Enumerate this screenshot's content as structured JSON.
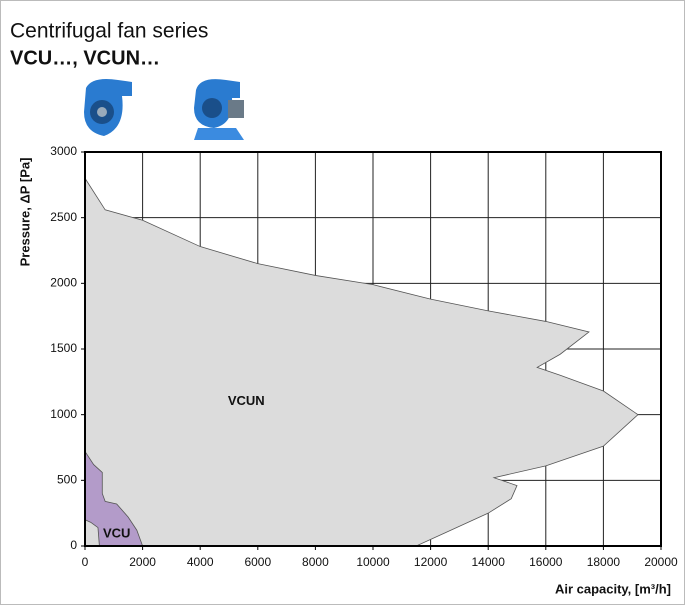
{
  "chart_data": {
    "type": "area",
    "title": "Centrifugal fan series",
    "subtitle": "VCU…, VCUN…",
    "x_label": "Air capacity, [m³/h]",
    "y_label": "Pressure, ΔP [Pa]",
    "xlim": [
      0,
      20000
    ],
    "ylim": [
      0,
      3000
    ],
    "xticks": [
      0,
      2000,
      4000,
      6000,
      8000,
      10000,
      12000,
      14000,
      16000,
      18000,
      20000
    ],
    "yticks": [
      0,
      500,
      1000,
      1500,
      2000,
      2500,
      3000
    ],
    "grid": true,
    "series": [
      {
        "name": "VCUN",
        "color": "#dcdcdc",
        "x": [
          0,
          700,
          2000,
          4000,
          6000,
          8000,
          10000,
          12000,
          14000,
          16000,
          17500,
          16500,
          15700,
          16500,
          18000,
          19200,
          18000,
          16000,
          14200,
          15000,
          14800,
          14000,
          12500,
          11500,
          0
        ],
        "values": [
          2800,
          2560,
          2480,
          2280,
          2150,
          2060,
          1990,
          1880,
          1790,
          1710,
          1630,
          1460,
          1360,
          1300,
          1180,
          1000,
          760,
          610,
          520,
          460,
          360,
          250,
          100,
          0,
          0
        ]
      },
      {
        "name": "VCU",
        "color": "#b39bc9",
        "x": [
          0,
          300,
          600,
          600,
          700,
          1100,
          1500,
          1800,
          2000,
          500,
          450,
          200,
          0
        ],
        "values": [
          720,
          620,
          560,
          400,
          340,
          320,
          220,
          120,
          0,
          0,
          140,
          180,
          200
        ]
      }
    ]
  }
}
